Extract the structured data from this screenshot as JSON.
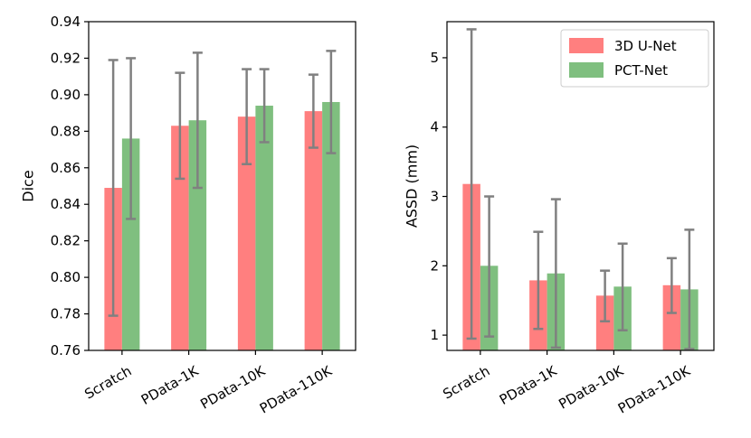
{
  "chart_data": [
    {
      "type": "bar",
      "categories": [
        "Scratch",
        "PData-1K",
        "PData-10K",
        "PData-110K"
      ],
      "series": [
        {
          "name": "3D U-Net",
          "color": "#ff7f7f",
          "values": [
            0.849,
            0.883,
            0.888,
            0.891
          ],
          "err_low": [
            0.779,
            0.854,
            0.862,
            0.871
          ],
          "err_high": [
            0.919,
            0.912,
            0.914,
            0.911
          ]
        },
        {
          "name": "PCT-Net",
          "color": "#7fbf7f",
          "values": [
            0.876,
            0.886,
            0.894,
            0.896
          ],
          "err_low": [
            0.832,
            0.849,
            0.874,
            0.868
          ],
          "err_high": [
            0.92,
            0.923,
            0.914,
            0.924
          ]
        }
      ],
      "xlabel": "",
      "ylabel": "Dice",
      "ylim": [
        0.76,
        0.94
      ],
      "yticks": [
        0.76,
        0.78,
        0.8,
        0.82,
        0.84,
        0.86,
        0.88,
        0.9,
        0.92,
        0.94
      ],
      "yticks_labels": [
        "0.76",
        "0.78",
        "0.80",
        "0.82",
        "0.84",
        "0.86",
        "0.88",
        "0.90",
        "0.92",
        "0.94"
      ],
      "legend": false
    },
    {
      "type": "bar",
      "categories": [
        "Scratch",
        "PData-1K",
        "PData-10K",
        "PData-110K"
      ],
      "series": [
        {
          "name": "3D U-Net",
          "color": "#ff7f7f",
          "values": [
            3.18,
            1.79,
            1.57,
            1.72
          ],
          "err_low": [
            0.95,
            1.09,
            1.2,
            1.32
          ],
          "err_high": [
            5.41,
            2.49,
            1.93,
            2.11
          ]
        },
        {
          "name": "PCT-Net",
          "color": "#7fbf7f",
          "values": [
            2.0,
            1.89,
            1.7,
            1.66
          ],
          "err_low": [
            0.98,
            0.82,
            1.07,
            0.8
          ],
          "err_high": [
            3.0,
            2.96,
            2.32,
            2.52
          ]
        }
      ],
      "xlabel": "",
      "ylabel": "ASSD (mm)",
      "ylim": [
        0.78,
        5.52
      ],
      "yticks": [
        1,
        2,
        3,
        4,
        5
      ],
      "yticks_labels": [
        "1",
        "2",
        "3",
        "4",
        "5"
      ],
      "legend": true,
      "legend_position": "top-right"
    }
  ]
}
